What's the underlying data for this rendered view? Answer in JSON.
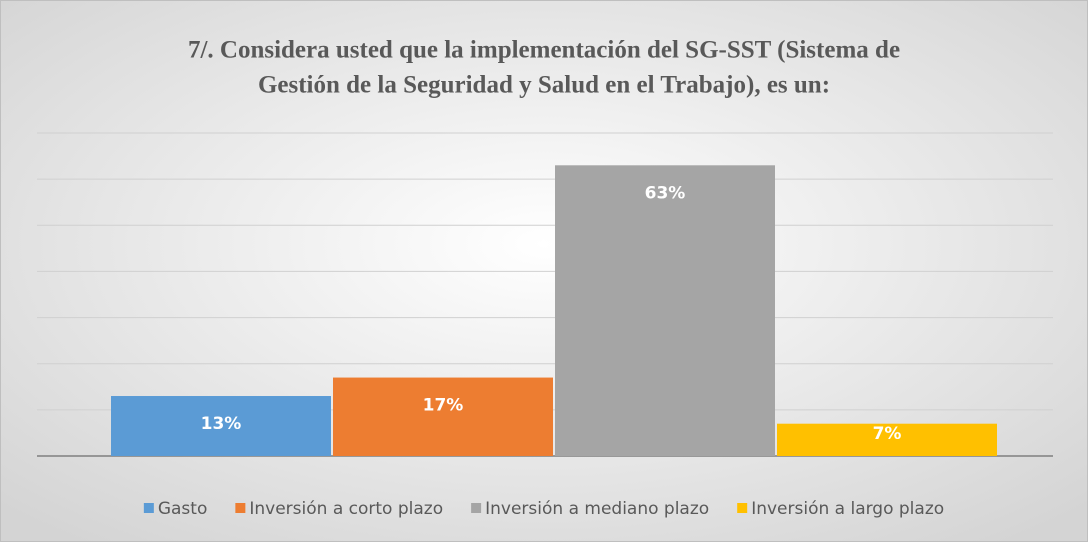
{
  "chart_data": {
    "type": "bar",
    "title": [
      "7/. Considera usted que la implementación del SG-SST (Sistema de",
      "Gestión de la Seguridad y Salud en el Trabajo),  es un:"
    ],
    "series": [
      {
        "name": "Gasto",
        "color": "#5b9bd5",
        "values": [
          13
        ],
        "value_labels": [
          "13%"
        ]
      },
      {
        "name": "Inversión a corto plazo",
        "color": "#ed7d31",
        "values": [
          17
        ],
        "value_labels": [
          "17%"
        ]
      },
      {
        "name": "Inversión a mediano plazo",
        "color": "#a5a5a5",
        "values": [
          63
        ],
        "value_labels": [
          "63%"
        ]
      },
      {
        "name": "Inversión a largo plazo",
        "color": "#ffc000",
        "values": [
          7
        ],
        "value_labels": [
          "7%"
        ]
      }
    ],
    "ylim": [
      0,
      70
    ],
    "yticks": [
      0,
      10,
      20,
      30,
      40,
      50,
      60,
      70
    ],
    "grid": true,
    "legend": "bottom"
  }
}
